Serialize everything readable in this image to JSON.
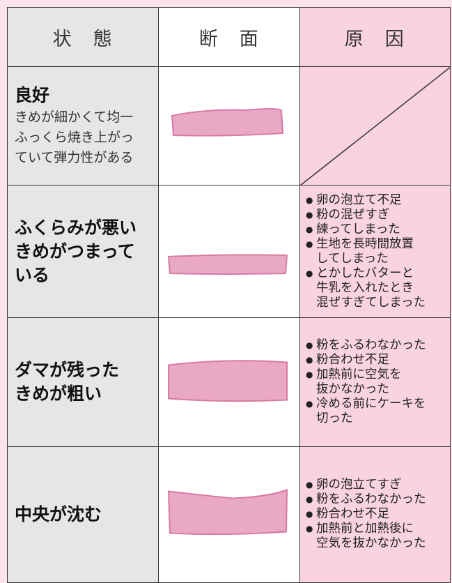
{
  "header": [
    "状　態",
    "断　面",
    "原　因"
  ],
  "rows": [
    {
      "title": [
        "良好"
      ],
      "description": [
        "きめが細かくて均一",
        "ふっくら焼き上がっ",
        "ていて弾力性がある"
      ],
      "causes": []
    },
    {
      "title": [
        "ふくらみが悪い",
        "きめがつまって",
        "いる"
      ],
      "causes": [
        [
          "卵の泡立て不足"
        ],
        [
          "粉の混ぜすぎ"
        ],
        [
          "練ってしまった"
        ],
        [
          "生地を長時間放置",
          "してしまった"
        ],
        [
          "とかしたバターと",
          "牛乳を入れたとき",
          "混ぜすぎてしまった"
        ]
      ]
    },
    {
      "title": [
        "ダマが残った",
        "きめが粗い"
      ],
      "causes": [
        [
          "粉をふるわなかった"
        ],
        [
          "粉合わせ不足"
        ],
        [
          "加熱前に空気を",
          "抜かなかった"
        ],
        [
          "冷める前にケーキを",
          "切った"
        ]
      ]
    },
    {
      "title": [
        "中央が沈む"
      ],
      "causes": [
        [
          "卵の泡立てすぎ"
        ],
        [
          "粉をふるわなかった"
        ],
        [
          "粉合わせ不足"
        ],
        [
          "加熱前と加熱後に",
          "空気を抜かなかった"
        ]
      ]
    }
  ]
}
